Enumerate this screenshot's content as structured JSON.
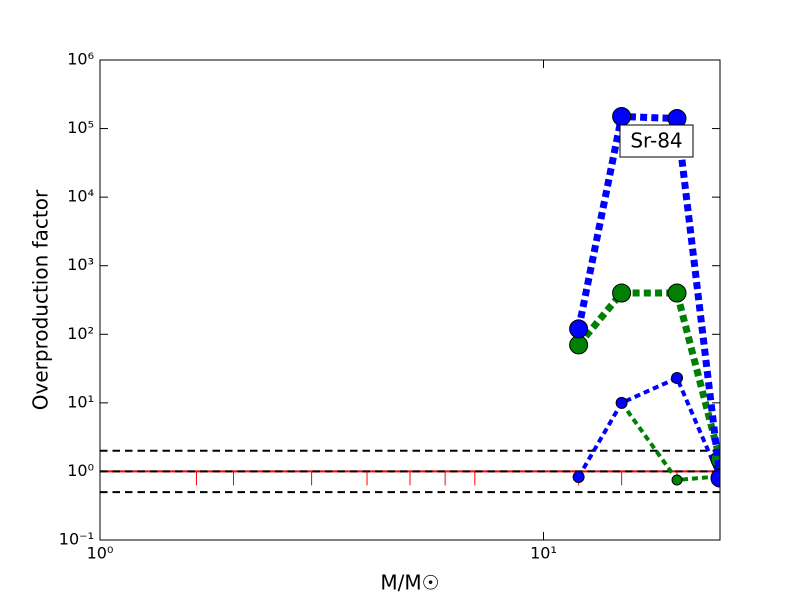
{
  "chart_data": {
    "type": "line",
    "xlabel": "M/M☉",
    "ylabel": "Overproduction factor",
    "annotation": "Sr-84",
    "xscale": "log",
    "yscale": "log",
    "xlim": [
      1,
      25
    ],
    "ylim": [
      0.1,
      1000000
    ],
    "xticks": [
      {
        "value": 1,
        "label": "10⁰"
      },
      {
        "value": 10,
        "label": "10¹"
      }
    ],
    "yticks": [
      {
        "value": 0.1,
        "label": "10⁻¹"
      },
      {
        "value": 1,
        "label": "10⁰"
      },
      {
        "value": 10,
        "label": "10¹"
      },
      {
        "value": 100,
        "label": "10²"
      },
      {
        "value": 1000,
        "label": "10³"
      },
      {
        "value": 10000,
        "label": "10⁴"
      },
      {
        "value": 100000,
        "label": "10⁵"
      },
      {
        "value": 1000000,
        "label": "10⁶"
      }
    ],
    "hlines": [
      {
        "value": 1,
        "color": "#ff0000",
        "linestyle": "solid"
      },
      {
        "value": 2,
        "color": "#000000",
        "linestyle": "dashed"
      },
      {
        "value": 1,
        "color": "#000000",
        "linestyle": "dashed"
      },
      {
        "value": 0.5,
        "color": "#000000",
        "linestyle": "dashed"
      }
    ],
    "series": [
      {
        "color": "#ff0000",
        "linestyle": "none",
        "marker": "tick",
        "x": [
          1.65,
          2,
          3,
          4,
          5,
          6,
          7,
          12,
          15,
          20
        ],
        "values": [
          1,
          1,
          1,
          1,
          1,
          1,
          1,
          1,
          1,
          1
        ]
      },
      {
        "color": "#008000",
        "linestyle": "dashed",
        "linewidth": 4,
        "marker": "circle",
        "marker_size": 5,
        "x": [
          12,
          15,
          20,
          25
        ],
        "values": [
          null,
          10,
          0.75,
          0.85
        ]
      },
      {
        "color": "#0000ff",
        "linestyle": "dashed",
        "linewidth": 4,
        "marker": "circle",
        "marker_size": 5.5,
        "x": [
          12,
          15,
          20,
          25
        ],
        "values": [
          0.83,
          10,
          23,
          0.8
        ]
      },
      {
        "color": "#008000",
        "linestyle": "dotted",
        "linewidth": 7,
        "marker": "circle",
        "marker_size": 9,
        "x": [
          12,
          15,
          20,
          25
        ],
        "values": [
          70,
          400,
          400,
          1.5
        ]
      },
      {
        "color": "#0000ff",
        "linestyle": "dotted",
        "linewidth": 7,
        "marker": "circle",
        "marker_size": 9,
        "x": [
          12,
          15,
          20,
          25
        ],
        "values": [
          120,
          150000,
          140000,
          0.8
        ]
      }
    ]
  }
}
